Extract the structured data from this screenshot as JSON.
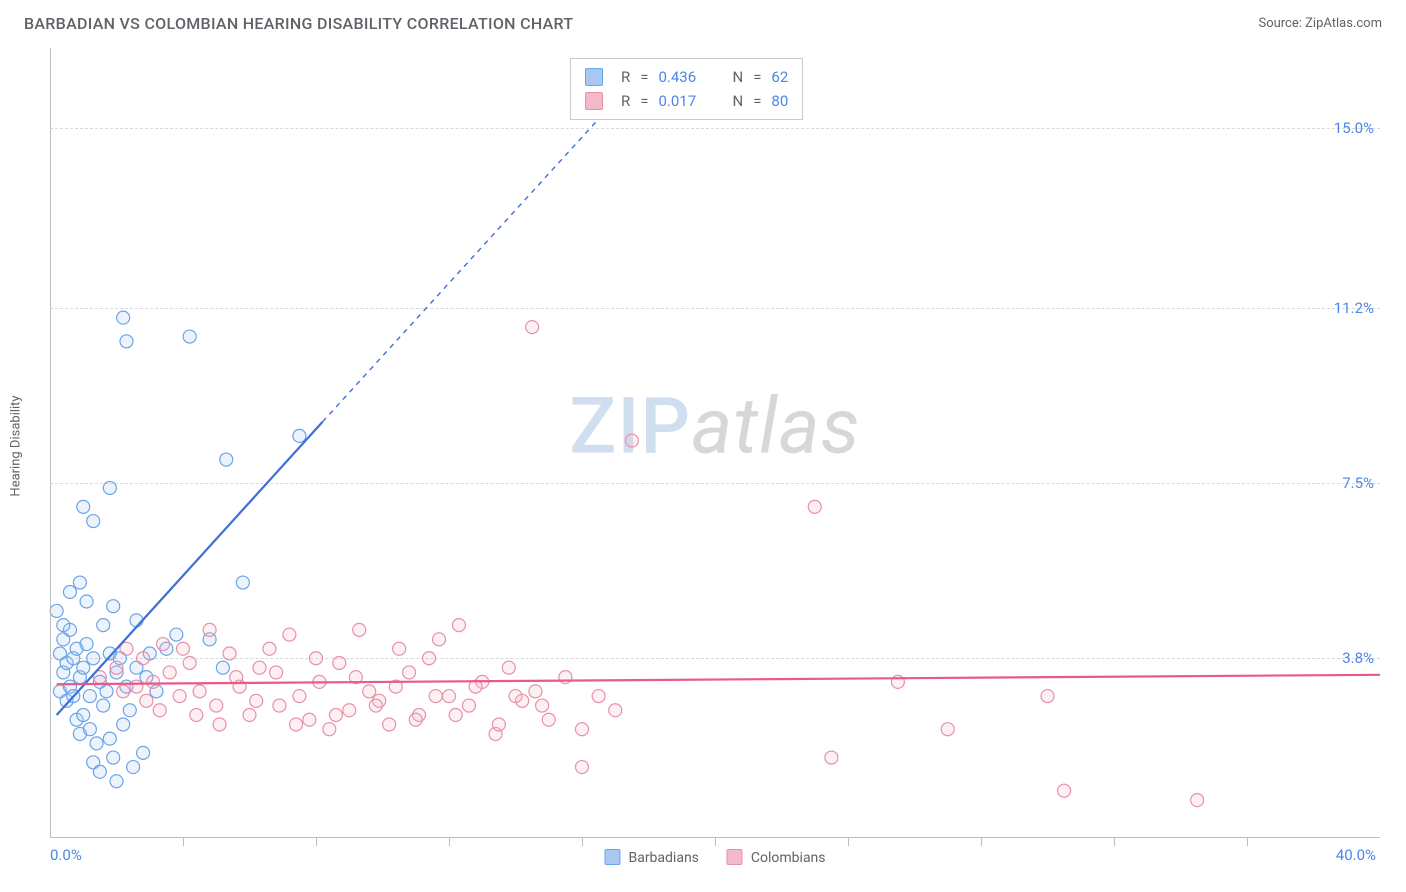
{
  "title": "BARBADIAN VS COLOMBIAN HEARING DISABILITY CORRELATION CHART",
  "source_prefix": "Source: ",
  "source_link": "ZipAtlas.com",
  "yaxis_title": "Hearing Disability",
  "watermark": {
    "zip": "ZIP",
    "atlas": "atlas"
  },
  "chart": {
    "type": "scatter-with-regression",
    "xlim": [
      0,
      40
    ],
    "ylim": [
      0,
      16.7
    ],
    "xlabel_min": "0.0%",
    "xlabel_max": "40.0%",
    "xtick_positions": [
      4,
      8,
      12,
      16,
      20,
      24,
      28,
      32,
      36
    ],
    "ytick_labels": [
      {
        "v": 3.8,
        "label": "3.8%"
      },
      {
        "v": 7.5,
        "label": "7.5%"
      },
      {
        "v": 11.2,
        "label": "11.2%"
      },
      {
        "v": 15.0,
        "label": "15.0%"
      }
    ],
    "grid_color": "#d7d9db",
    "axis_color": "#b9bfc4",
    "background_color": "#ffffff",
    "marker_radius": 6.5,
    "marker_stroke_width": 1.2,
    "marker_fill_opacity": 0.22,
    "line_width_solid": 2.2,
    "line_dash": "5,5",
    "series": [
      {
        "name": "Barbadians",
        "color_stroke": "#6aa5e8",
        "color_fill": "#a7c8f0",
        "line_color": "#3d6fd6",
        "regression": {
          "x1": 0.2,
          "y1": 2.6,
          "x2": 8.2,
          "y2": 8.8,
          "x2_dash_end": 16.5,
          "y2_dash_end": 15.2
        },
        "stats": {
          "R": "0.436",
          "N": "62"
        },
        "points": [
          [
            0.2,
            4.8
          ],
          [
            0.3,
            3.9
          ],
          [
            0.3,
            3.1
          ],
          [
            0.4,
            3.5
          ],
          [
            0.4,
            4.2
          ],
          [
            0.5,
            2.9
          ],
          [
            0.5,
            3.7
          ],
          [
            0.6,
            4.4
          ],
          [
            0.6,
            3.2
          ],
          [
            0.7,
            3.0
          ],
          [
            0.7,
            3.8
          ],
          [
            0.8,
            2.5
          ],
          [
            0.8,
            4.0
          ],
          [
            0.9,
            3.4
          ],
          [
            0.9,
            2.2
          ],
          [
            1.0,
            3.6
          ],
          [
            1.0,
            2.6
          ],
          [
            1.1,
            4.1
          ],
          [
            1.2,
            3.0
          ],
          [
            1.2,
            2.3
          ],
          [
            1.3,
            1.6
          ],
          [
            1.3,
            3.8
          ],
          [
            1.4,
            2.0
          ],
          [
            1.5,
            3.3
          ],
          [
            1.5,
            1.4
          ],
          [
            1.6,
            2.8
          ],
          [
            1.6,
            4.5
          ],
          [
            1.7,
            3.1
          ],
          [
            1.8,
            3.9
          ],
          [
            1.8,
            2.1
          ],
          [
            1.9,
            1.7
          ],
          [
            2.0,
            3.5
          ],
          [
            2.0,
            1.2
          ],
          [
            2.1,
            3.8
          ],
          [
            2.2,
            2.4
          ],
          [
            2.3,
            3.2
          ],
          [
            2.4,
            2.7
          ],
          [
            2.5,
            1.5
          ],
          [
            2.6,
            3.6
          ],
          [
            2.8,
            1.8
          ],
          [
            2.9,
            3.4
          ],
          [
            3.0,
            3.9
          ],
          [
            3.2,
            3.1
          ],
          [
            3.5,
            4.0
          ],
          [
            3.8,
            4.3
          ],
          [
            1.0,
            7.0
          ],
          [
            1.3,
            6.7
          ],
          [
            1.8,
            7.4
          ],
          [
            2.2,
            11.0
          ],
          [
            2.3,
            10.5
          ],
          [
            4.2,
            10.6
          ],
          [
            5.3,
            8.0
          ],
          [
            7.5,
            8.5
          ],
          [
            5.8,
            5.4
          ],
          [
            4.8,
            4.2
          ],
          [
            5.2,
            3.6
          ],
          [
            1.9,
            4.9
          ],
          [
            0.6,
            5.2
          ],
          [
            0.9,
            5.4
          ],
          [
            1.1,
            5.0
          ],
          [
            0.4,
            4.5
          ],
          [
            2.6,
            4.6
          ]
        ]
      },
      {
        "name": "Colombians",
        "color_stroke": "#e890a8",
        "color_fill": "#f4b9c9",
        "line_color": "#e75a8a",
        "regression": {
          "x1": 0.2,
          "y1": 3.25,
          "x2": 40.0,
          "y2": 3.45,
          "x2_dash_end": 40.0,
          "y2_dash_end": 3.45
        },
        "stats": {
          "R": "0.017",
          "N": "80"
        },
        "points": [
          [
            1.5,
            3.4
          ],
          [
            2.0,
            3.6
          ],
          [
            2.3,
            4.0
          ],
          [
            2.6,
            3.2
          ],
          [
            2.8,
            3.8
          ],
          [
            3.1,
            3.3
          ],
          [
            3.4,
            4.1
          ],
          [
            3.6,
            3.5
          ],
          [
            3.9,
            3.0
          ],
          [
            4.2,
            3.7
          ],
          [
            4.5,
            3.1
          ],
          [
            4.8,
            4.4
          ],
          [
            5.1,
            2.4
          ],
          [
            5.4,
            3.9
          ],
          [
            5.7,
            3.2
          ],
          [
            6.0,
            2.6
          ],
          [
            6.3,
            3.6
          ],
          [
            6.6,
            4.0
          ],
          [
            6.9,
            2.8
          ],
          [
            7.2,
            4.3
          ],
          [
            7.5,
            3.0
          ],
          [
            7.8,
            2.5
          ],
          [
            8.1,
            3.3
          ],
          [
            8.4,
            2.3
          ],
          [
            8.7,
            3.7
          ],
          [
            9.0,
            2.7
          ],
          [
            9.3,
            4.4
          ],
          [
            9.6,
            3.1
          ],
          [
            9.9,
            2.9
          ],
          [
            10.2,
            2.4
          ],
          [
            10.5,
            4.0
          ],
          [
            10.8,
            3.5
          ],
          [
            11.1,
            2.6
          ],
          [
            11.4,
            3.8
          ],
          [
            11.7,
            4.2
          ],
          [
            12.0,
            3.0
          ],
          [
            12.3,
            4.5
          ],
          [
            12.6,
            2.8
          ],
          [
            13.0,
            3.3
          ],
          [
            13.4,
            2.2
          ],
          [
            13.8,
            3.6
          ],
          [
            14.2,
            2.9
          ],
          [
            14.6,
            3.1
          ],
          [
            15.0,
            2.5
          ],
          [
            15.5,
            3.4
          ],
          [
            16.0,
            2.3
          ],
          [
            16.5,
            3.0
          ],
          [
            17.0,
            2.7
          ],
          [
            14.5,
            10.8
          ],
          [
            17.5,
            8.4
          ],
          [
            16.0,
            1.5
          ],
          [
            23.0,
            7.0
          ],
          [
            23.5,
            1.7
          ],
          [
            25.5,
            3.3
          ],
          [
            27.0,
            2.3
          ],
          [
            30.0,
            3.0
          ],
          [
            30.5,
            1.0
          ],
          [
            34.5,
            0.8
          ],
          [
            2.2,
            3.1
          ],
          [
            2.9,
            2.9
          ],
          [
            3.3,
            2.7
          ],
          [
            4.0,
            4.0
          ],
          [
            4.4,
            2.6
          ],
          [
            5.0,
            2.8
          ],
          [
            5.6,
            3.4
          ],
          [
            6.2,
            2.9
          ],
          [
            6.8,
            3.5
          ],
          [
            7.4,
            2.4
          ],
          [
            8.0,
            3.8
          ],
          [
            8.6,
            2.6
          ],
          [
            9.2,
            3.4
          ],
          [
            9.8,
            2.8
          ],
          [
            10.4,
            3.2
          ],
          [
            11.0,
            2.5
          ],
          [
            11.6,
            3.0
          ],
          [
            12.2,
            2.6
          ],
          [
            12.8,
            3.2
          ],
          [
            13.5,
            2.4
          ],
          [
            14.0,
            3.0
          ],
          [
            14.8,
            2.8
          ]
        ]
      }
    ]
  },
  "legend": {
    "items": [
      {
        "label": "Barbadians",
        "fill": "#a7c8f0",
        "stroke": "#6aa5e8"
      },
      {
        "label": "Colombians",
        "fill": "#f4b9c9",
        "stroke": "#e890a8"
      }
    ]
  },
  "stats_labels": {
    "R": "R",
    "eq": "=",
    "N": "N"
  }
}
